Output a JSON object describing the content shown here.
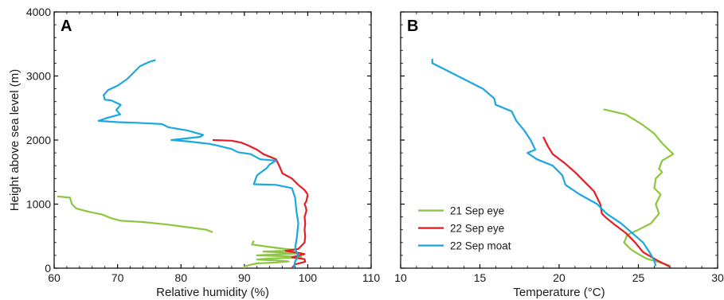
{
  "chart_data": [
    {
      "type": "line",
      "panel": "A",
      "xlabel": "Relative humidity (%)",
      "ylabel": "Height above sea level (m)",
      "xlim": [
        60,
        110
      ],
      "ylim": [
        0,
        4000
      ],
      "xticks": [
        60,
        70,
        80,
        90,
        100,
        110
      ],
      "yticks": [
        0,
        1000,
        2000,
        3000,
        4000
      ],
      "grid": false,
      "series": [
        {
          "name": "21 Sep eye",
          "color": "#8dc63f",
          "points": [
            [
              60.5,
              1120
            ],
            [
              62.5,
              1100
            ],
            [
              62.8,
              1000
            ],
            [
              63.5,
              930
            ],
            [
              65.5,
              880
            ],
            [
              67.5,
              840
            ],
            [
              69,
              780
            ],
            [
              70.5,
              740
            ],
            [
              74,
              720
            ],
            [
              78,
              680
            ],
            [
              81,
              640
            ],
            [
              84,
              600
            ],
            [
              85,
              560
            ]
          ],
          "lower_points": [
            [
              91.5,
              430
            ],
            [
              91.2,
              370
            ],
            [
              94,
              330
            ],
            [
              96.5,
              300
            ],
            [
              97.8,
              290
            ],
            [
              96,
              270
            ],
            [
              93,
              260
            ],
            [
              95,
              250
            ],
            [
              97,
              235
            ],
            [
              99,
              230
            ],
            [
              95,
              215
            ],
            [
              92,
              200
            ],
            [
              95,
              190
            ],
            [
              98,
              180
            ],
            [
              99,
              175
            ],
            [
              97,
              160
            ],
            [
              94,
              150
            ],
            [
              92,
              135
            ],
            [
              95,
              120
            ],
            [
              97,
              105
            ],
            [
              95,
              90
            ],
            [
              92,
              75
            ],
            [
              91,
              55
            ],
            [
              90,
              25
            ],
            [
              90,
              0
            ]
          ]
        },
        {
          "name": "22 Sep eye",
          "color": "#e31e24",
          "points": [
            [
              100,
              1150
            ],
            [
              99.8,
              1050
            ],
            [
              99.5,
              1000
            ],
            [
              99.7,
              950
            ],
            [
              99.8,
              900
            ],
            [
              99.5,
              800
            ],
            [
              99.6,
              700
            ],
            [
              99.5,
              600
            ],
            [
              99.6,
              500
            ],
            [
              99.5,
              400
            ],
            [
              98.5,
              300
            ],
            [
              96.5,
              270
            ],
            [
              98.5,
              240
            ],
            [
              99.5,
              220
            ],
            [
              97.5,
              170
            ],
            [
              99.5,
              140
            ],
            [
              99.6,
              100
            ],
            [
              98,
              60
            ],
            [
              97.5,
              0
            ]
          ],
          "upper_points": [
            [
              85,
              2000
            ],
            [
              88,
              1990
            ],
            [
              89.5,
              1960
            ],
            [
              90.5,
              1920
            ],
            [
              92,
              1850
            ],
            [
              93,
              1780
            ],
            [
              95,
              1700
            ],
            [
              95.5,
              1600
            ],
            [
              96,
              1480
            ],
            [
              97.5,
              1400
            ],
            [
              98.5,
              1300
            ],
            [
              99.5,
              1220
            ],
            [
              100,
              1150
            ]
          ]
        },
        {
          "name": "22 Sep moat",
          "color": "#1ba7e0",
          "points": [
            [
              76,
              3250
            ],
            [
              75,
              3220
            ],
            [
              73.5,
              3150
            ],
            [
              72.5,
              3050
            ],
            [
              71.5,
              2950
            ],
            [
              70,
              2850
            ],
            [
              68.5,
              2780
            ],
            [
              67.8,
              2700
            ],
            [
              68,
              2630
            ],
            [
              69,
              2620
            ],
            [
              70.5,
              2550
            ],
            [
              69.8,
              2470
            ],
            [
              70.4,
              2400
            ],
            [
              68.5,
              2350
            ],
            [
              67,
              2300
            ],
            [
              70,
              2280
            ],
            [
              73,
              2270
            ],
            [
              77,
              2250
            ],
            [
              78,
              2200
            ],
            [
              81,
              2150
            ],
            [
              83.5,
              2080
            ],
            [
              83,
              2050
            ],
            [
              78.5,
              2000
            ],
            [
              81,
              1980
            ],
            [
              84.5,
              1940
            ],
            [
              85.5,
              1920
            ],
            [
              88,
              1860
            ],
            [
              89,
              1810
            ],
            [
              91,
              1780
            ],
            [
              92.5,
              1700
            ],
            [
              95,
              1680
            ],
            [
              94,
              1620
            ],
            [
              93.5,
              1560
            ],
            [
              92,
              1450
            ],
            [
              91.5,
              1310
            ],
            [
              95,
              1300
            ],
            [
              97.5,
              1250
            ],
            [
              98,
              1100
            ],
            [
              98.2,
              900
            ],
            [
              98.5,
              700
            ],
            [
              98.3,
              500
            ],
            [
              98,
              300
            ],
            [
              98.5,
              200
            ],
            [
              98,
              100
            ],
            [
              97.8,
              0
            ]
          ]
        }
      ]
    },
    {
      "type": "line",
      "panel": "B",
      "xlabel": "Temperature (°C)",
      "ylabel": "",
      "xlim": [
        10,
        30
      ],
      "ylim": [
        0,
        4000
      ],
      "xticks": [
        10,
        15,
        20,
        25,
        30
      ],
      "yticks": [
        0,
        1000,
        2000,
        3000,
        4000
      ],
      "grid": false,
      "legend_position": "lower-left",
      "series": [
        {
          "name": "21 Sep eye",
          "color": "#8dc63f",
          "points": [
            [
              22.8,
              2480
            ],
            [
              24.2,
              2400
            ],
            [
              25.2,
              2250
            ],
            [
              26,
              2100
            ],
            [
              26.5,
              1950
            ],
            [
              27.2,
              1780
            ],
            [
              26.5,
              1680
            ],
            [
              26.3,
              1550
            ],
            [
              26.5,
              1500
            ],
            [
              26.1,
              1400
            ],
            [
              26,
              1250
            ],
            [
              26.4,
              1150
            ],
            [
              26.1,
              1000
            ],
            [
              26.3,
              850
            ],
            [
              25.8,
              700
            ],
            [
              25,
              600
            ],
            [
              24.3,
              520
            ],
            [
              24.1,
              400
            ],
            [
              24.5,
              300
            ],
            [
              25,
              220
            ],
            [
              25.5,
              150
            ],
            [
              26.2,
              100
            ],
            [
              27,
              40
            ]
          ]
        },
        {
          "name": "22 Sep eye",
          "color": "#e31e24",
          "points": [
            [
              19,
              2050
            ],
            [
              19.3,
              1900
            ],
            [
              19.6,
              1780
            ],
            [
              20.3,
              1650
            ],
            [
              21,
              1500
            ],
            [
              21.6,
              1350
            ],
            [
              22.2,
              1200
            ],
            [
              22.6,
              1000
            ],
            [
              22.7,
              850
            ],
            [
              23,
              780
            ],
            [
              23.5,
              680
            ],
            [
              24.2,
              550
            ],
            [
              24.8,
              400
            ],
            [
              25.3,
              250
            ],
            [
              26.2,
              120
            ],
            [
              27,
              20
            ]
          ]
        },
        {
          "name": "22 Sep moat",
          "color": "#1ba7e0",
          "points": [
            [
              12,
              3270
            ],
            [
              12,
              3200
            ],
            [
              12.8,
              3100
            ],
            [
              14,
              2950
            ],
            [
              15.2,
              2800
            ],
            [
              15.9,
              2650
            ],
            [
              16,
              2550
            ],
            [
              17,
              2450
            ],
            [
              17.3,
              2300
            ],
            [
              17.8,
              2150
            ],
            [
              18.2,
              2000
            ],
            [
              18.5,
              1850
            ],
            [
              18,
              1800
            ],
            [
              18.6,
              1700
            ],
            [
              19.6,
              1600
            ],
            [
              20.2,
              1450
            ],
            [
              20.4,
              1300
            ],
            [
              21.3,
              1150
            ],
            [
              22.4,
              1000
            ],
            [
              23,
              850
            ],
            [
              23.9,
              700
            ],
            [
              24.6,
              550
            ],
            [
              25.3,
              400
            ],
            [
              25.7,
              250
            ],
            [
              26,
              120
            ],
            [
              26.1,
              30
            ]
          ]
        }
      ]
    }
  ]
}
